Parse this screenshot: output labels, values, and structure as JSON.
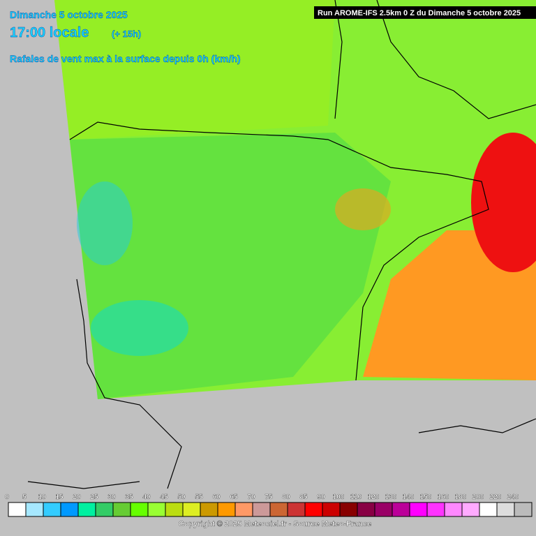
{
  "header": {
    "date": "Dimanche 5 octobre 2025",
    "time": "17:00 locale",
    "lead": "(+ 15h)",
    "parameter": "Rafales de vent max à la surface depuis 0h (km/h)",
    "run": "Run AROME-IFS 2.5km 0 Z du Dimanche 5 octobre 2025"
  },
  "legend": {
    "stops": [
      {
        "label": 0,
        "color": "#ffffff"
      },
      {
        "label": 5,
        "color": "#a6e8ff"
      },
      {
        "label": 10,
        "color": "#33ccff"
      },
      {
        "label": 15,
        "color": "#0099ff"
      },
      {
        "label": 20,
        "color": "#00f0a0"
      },
      {
        "label": 25,
        "color": "#33cc66"
      },
      {
        "label": 30,
        "color": "#66cc33"
      },
      {
        "label": 35,
        "color": "#66ff00"
      },
      {
        "label": 40,
        "color": "#99ff33"
      },
      {
        "label": 45,
        "color": "#bbdd11"
      },
      {
        "label": 50,
        "color": "#ddee22"
      },
      {
        "label": 55,
        "color": "#cc9900"
      },
      {
        "label": 60,
        "color": "#ff9900"
      },
      {
        "label": 65,
        "color": "#ff9966"
      },
      {
        "label": 70,
        "color": "#cc9999"
      },
      {
        "label": 75,
        "color": "#cc6633"
      },
      {
        "label": 80,
        "color": "#cc3333"
      },
      {
        "label": 85,
        "color": "#ff0000"
      },
      {
        "label": 90,
        "color": "#cc0000"
      },
      {
        "label": 100,
        "color": "#880000"
      },
      {
        "label": 110,
        "color": "#880044"
      },
      {
        "label": 120,
        "color": "#990066"
      },
      {
        "label": 130,
        "color": "#bb0099"
      },
      {
        "label": 140,
        "color": "#ff00ff"
      },
      {
        "label": 150,
        "color": "#ff33ff"
      },
      {
        "label": 160,
        "color": "#ff88ff"
      },
      {
        "label": 180,
        "color": "#ffaaff"
      },
      {
        "label": 200,
        "color": "#ffffff"
      },
      {
        "label": 220,
        "color": "#dddddd"
      },
      {
        "label": 240,
        "color": "#bbbbbb"
      }
    ]
  },
  "footer": {
    "copyright": "Copyright © 2025 Meteociel.fr - Source Meteo-France"
  }
}
